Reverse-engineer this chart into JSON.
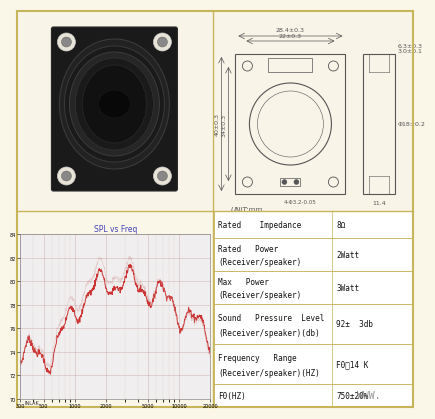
{
  "bg_color": "#faf6e8",
  "border_color": "#c8b45a",
  "spec_rows": [
    {
      "label": "Rated    Impedance",
      "value": "8Ω",
      "lines": 1
    },
    {
      "label": "Rated   Power\n(Receiver/speaker)",
      "value": "2Watt",
      "lines": 2
    },
    {
      "label": "Max   Power\n(Receiver/speaker)",
      "value": "3Watt",
      "lines": 2
    },
    {
      "label": "Sound   Pressure  Level\n(Receiver/speaker)(db)",
      "value": "92±  3db",
      "lines": 2
    },
    {
      "label": "Frequency   Range\n(Receiver/speaker)(HZ)",
      "value": "F0～14 K",
      "lines": 2
    },
    {
      "label": "F0(HZ)",
      "value": "750±20%",
      "lines": 1
    }
  ],
  "spl_title": "SPL vs Freq",
  "unit_text": "UNIT:mm",
  "dim_top_width": "28.4±0.3",
  "dim_inner_width": "22±0.3",
  "dim_left_outer": "40±0.3",
  "dim_left_inner": "34±0.3",
  "dim_side_top_w": "6.3±0.3",
  "dim_side_top_h": "3.0±0.1",
  "dim_holes": "4-Φ3.2-0.05",
  "dim_side_d": "Φ18±0.2",
  "dim_side_bot": "11.4",
  "www_text": "WWW.",
  "grid_color": "#ccaaaa",
  "line_color": "#cc3333",
  "drawing_color": "#555555",
  "spl_bg": "#f5f5f5",
  "spl_footer_bg": "#e0e0e0",
  "speaker_bg": "#ffffff"
}
